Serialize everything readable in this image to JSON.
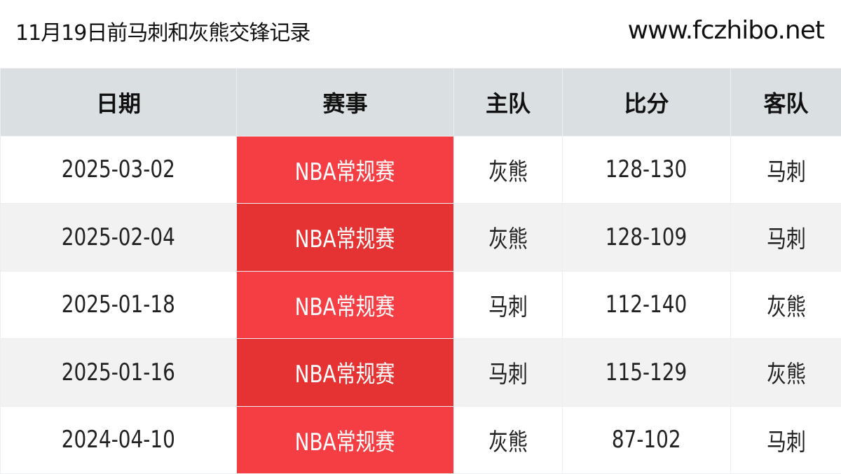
{
  "header": {
    "title": "11月19日前马刺和灰熊交锋记录",
    "site": "www.fczhibo.net"
  },
  "columns": [
    "日期",
    "赛事",
    "主队",
    "比分",
    "客队"
  ],
  "colors": {
    "header_bg": "#dadfe2",
    "event_bg": "#f43e44",
    "event_bg_alt": "#e53232",
    "row_alt": "#f2f2f2"
  },
  "rows": [
    [
      "2025-03-02",
      "NBA常规赛",
      "灰熊",
      "128-130",
      "马刺"
    ],
    [
      "2025-02-04",
      "NBA常规赛",
      "灰熊",
      "128-109",
      "马刺"
    ],
    [
      "2025-01-18",
      "NBA常规赛",
      "马刺",
      "112-140",
      "灰熊"
    ],
    [
      "2025-01-16",
      "NBA常规赛",
      "马刺",
      "115-129",
      "灰熊"
    ],
    [
      "2024-04-10",
      "NBA常规赛",
      "灰熊",
      "87-102",
      "马刺"
    ]
  ]
}
